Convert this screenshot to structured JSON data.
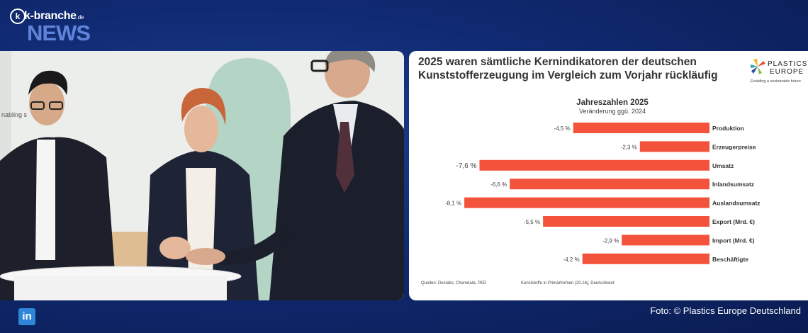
{
  "header": {
    "logo_brand": "k-branche",
    "logo_tld": ".de",
    "logo_news": "NEWS"
  },
  "photo": {
    "backdrop_text": "nabling s"
  },
  "chart_card": {
    "title_line1": "2025 waren sämtliche Kernindikatoren der deutschen",
    "title_line2": "Kunststofferzeugung im Vergleich zum Vorjahr rückläufig",
    "org_logo_line1": "PLASTICS",
    "org_logo_line2": "EUROPE",
    "org_logo_tagline": "Enabling a sustainable future",
    "footer_sources": "Quellen: Destatis, Chemdata, PED",
    "footer_note": "Kunststoffe in Primärformen (20.16), Deutschland"
  },
  "chart_data": {
    "type": "bar",
    "orientation": "horizontal",
    "title": "Jahreszahlen 2025",
    "subtitle": "Veränderung ggü. 2024",
    "categories": [
      "Produktion",
      "Erzeugerpreise",
      "Umsatz",
      "Inlandsumsatz",
      "Auslandsumsatz",
      "Export (Mrd. €)",
      "Import (Mrd. €)",
      "Beschäftigte"
    ],
    "values": [
      -4.5,
      -2.3,
      -7.6,
      -6.6,
      -8.1,
      -5.5,
      -2.9,
      -4.2
    ],
    "value_labels": [
      "-4,5 %",
      "-2,3 %",
      "-7,6 %",
      "-6,6 %",
      "-8,1 %",
      "-5,5 %",
      "-2,9 %",
      "-4,2 %"
    ],
    "bar_color": "#f4533b",
    "grid": false,
    "legend": "none"
  },
  "footer": {
    "social_icon": "linkedin-icon",
    "social_label": "in",
    "credit": "Foto: © Plastics Europe Deutschland"
  }
}
